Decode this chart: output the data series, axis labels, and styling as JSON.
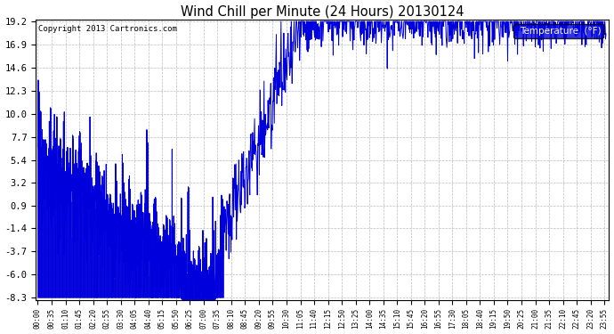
{
  "title": "Wind Chill per Minute (24 Hours) 20130124",
  "copyright": "Copyright 2013 Cartronics.com",
  "legend_label": "Temperature  (°F)",
  "line_color": "#0000dd",
  "background_color": "#ffffff",
  "grid_color": "#aaaaaa",
  "yticks": [
    -8.3,
    -6.0,
    -3.7,
    -1.4,
    0.9,
    3.2,
    5.4,
    7.7,
    10.0,
    12.3,
    14.6,
    16.9,
    19.2
  ],
  "ylim_min": -8.3,
  "ylim_max": 19.2,
  "total_minutes": 1440,
  "x_tick_interval": 35
}
